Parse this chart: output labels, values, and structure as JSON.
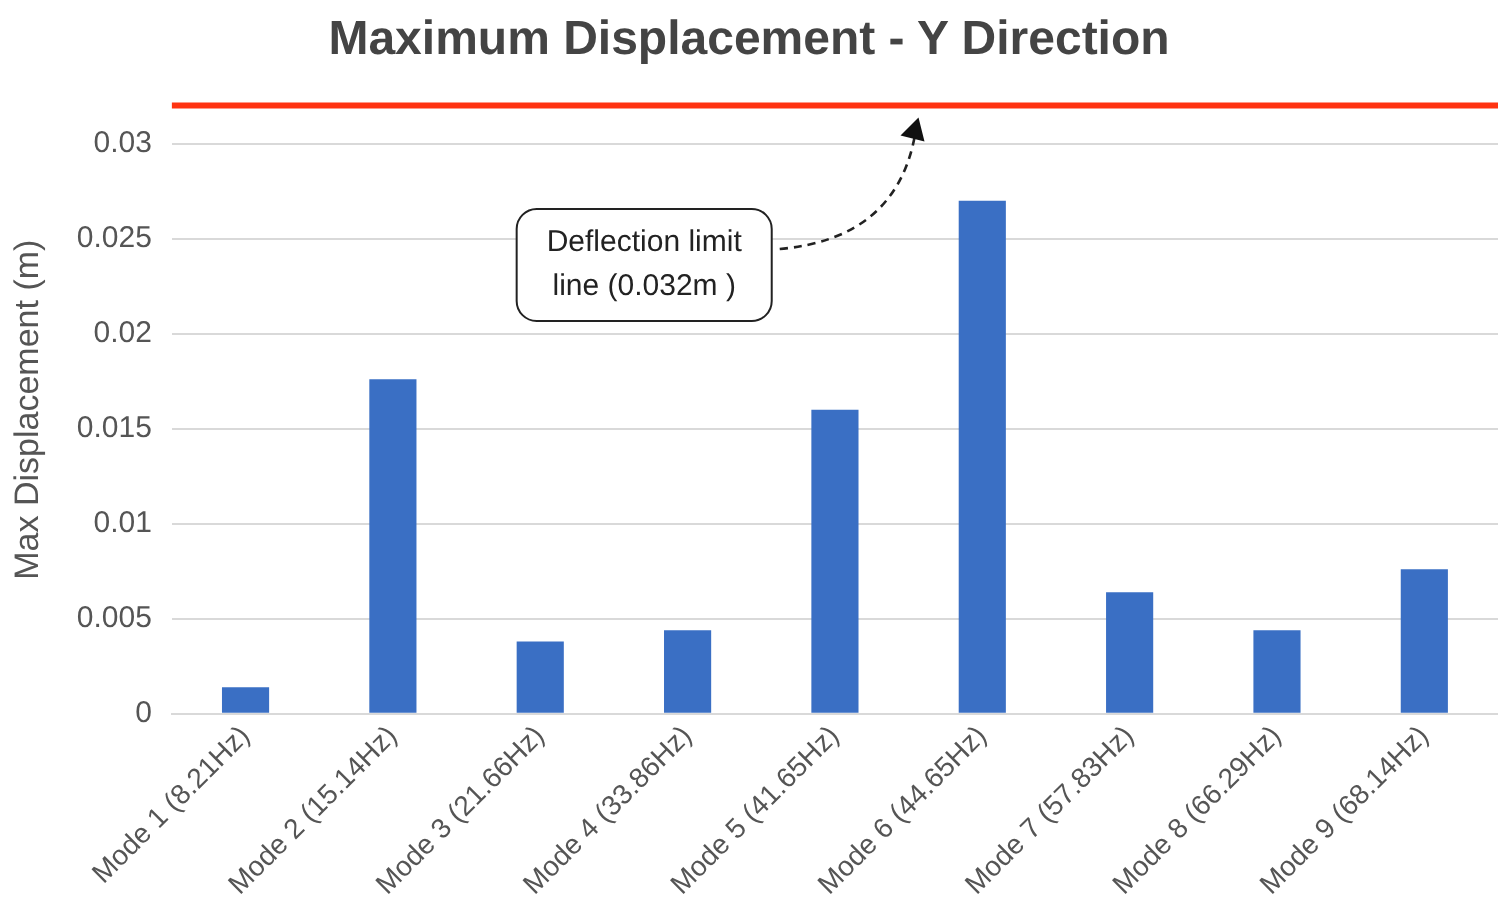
{
  "chart_data": {
    "type": "bar",
    "title": "Maximum Displacement - Y Direction",
    "ylabel": "Max Displacement (m)",
    "categories": [
      "Mode 1 (8.21Hz)",
      "Mode 2 (15.14Hz)",
      "Mode 3 (21.66Hz)",
      "Mode 4 (33.86Hz)",
      "Mode 5 (41.65Hz)",
      "Mode 6 (44.65Hz)",
      "Mode 7 (57.83Hz)",
      "Mode 8 (66.29Hz)",
      "Mode 9 (68.14Hz)"
    ],
    "values": [
      0.0014,
      0.0176,
      0.0038,
      0.0044,
      0.016,
      0.027,
      0.0064,
      0.0044,
      0.0076
    ],
    "color": "#3a6fc4",
    "ylim": [
      0,
      0.032
    ],
    "yticks": [
      0,
      0.005,
      0.01,
      0.015,
      0.02,
      0.025,
      0.03
    ],
    "grid": "y",
    "legend": false,
    "annotations": [
      "Deflection limit line (0.032m )"
    ],
    "ref_lines": [
      {
        "axis": "y",
        "value": 0.032,
        "color": "#ff3311"
      }
    ]
  }
}
